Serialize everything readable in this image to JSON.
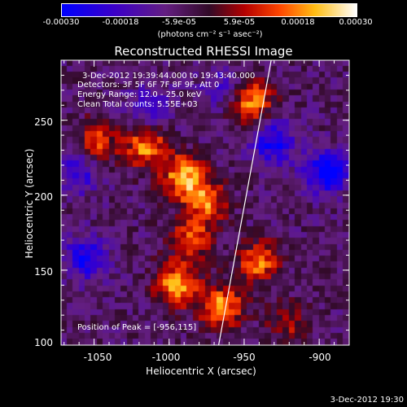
{
  "chart_data": {
    "type": "heatmap",
    "title": "Reconstructed RHESSI Image",
    "xlabel": "Heliocentric X (arcsec)",
    "ylabel": "Heliocentric Y (arcsec)",
    "xlim": [
      -1072,
      -880
    ],
    "ylim": [
      100,
      290
    ],
    "x_ticks": [
      "-1050",
      "-1000",
      "-950",
      "-900"
    ],
    "x_tick_values": [
      -1050,
      -1000,
      -950,
      -900
    ],
    "y_ticks": [
      "100",
      "150",
      "200",
      "250"
    ],
    "y_tick_values": [
      100,
      150,
      200,
      250
    ],
    "colorbar": {
      "range": [
        -0.0003,
        0.0003
      ],
      "ticks": [
        "-0.00030",
        "-0.00018",
        "-5.9e-05",
        "5.9e-05",
        "0.00018",
        "0.00030"
      ],
      "tick_values": [
        -0.0003,
        -0.00018,
        -5.9e-05,
        5.9e-05,
        0.00018,
        0.0003
      ],
      "units": "(photons cm⁻² s⁻¹ asec⁻²)"
    },
    "annotations": {
      "time_range": "3-Dec-2012 19:39:44.000 to 19:43:40.000",
      "detectors": "Detectors: 3F 5F 6F 7F 8F 9F, Att 0",
      "energy": "Energy Range: 12.0 - 25.0 keV",
      "clean": "Clean    Total counts: 5.55E+03",
      "peak": "Position of Peak = [-956,115]"
    },
    "limb_line": [
      [
        -967,
        100
      ],
      [
        -932,
        290
      ]
    ],
    "bright_regions": [
      {
        "x": -1015,
        "y": 232,
        "level": 0.00024
      },
      {
        "x": -990,
        "y": 212,
        "level": 0.00028
      },
      {
        "x": -975,
        "y": 195,
        "level": 0.00022
      },
      {
        "x": -985,
        "y": 170,
        "level": 0.0002
      },
      {
        "x": -995,
        "y": 140,
        "level": 0.00026
      },
      {
        "x": -965,
        "y": 125,
        "level": 0.00027
      },
      {
        "x": -940,
        "y": 155,
        "level": 0.00022
      },
      {
        "x": -945,
        "y": 262,
        "level": 0.00025
      },
      {
        "x": -920,
        "y": 115,
        "level": 0.00012
      },
      {
        "x": -1048,
        "y": 235,
        "level": 0.00018
      }
    ],
    "dim_regions": [
      {
        "x": -930,
        "y": 235,
        "level": -0.00022
      },
      {
        "x": -895,
        "y": 215,
        "level": -0.00026
      },
      {
        "x": -1055,
        "y": 158,
        "level": -0.00022
      },
      {
        "x": -1060,
        "y": 215,
        "level": -0.00016
      },
      {
        "x": -1012,
        "y": 258,
        "level": -0.00015
      },
      {
        "x": -965,
        "y": 272,
        "level": -0.00012
      }
    ]
  },
  "footer": {
    "timestamp": "3-Dec-2012 19:30"
  }
}
